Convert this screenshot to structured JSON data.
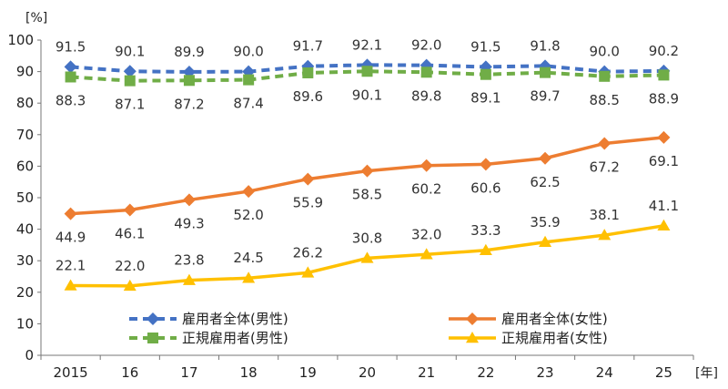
{
  "chart_data": {
    "type": "line",
    "y_unit": "[%]",
    "x_unit": "[年]",
    "categories": [
      "2015",
      "16",
      "17",
      "18",
      "19",
      "20",
      "21",
      "22",
      "23",
      "24",
      "25"
    ],
    "ylim": [
      0,
      100
    ],
    "yticks": [
      "0",
      "10",
      "20",
      "30",
      "40",
      "50",
      "60",
      "70",
      "80",
      "90",
      "100"
    ],
    "grid": false,
    "legend_position": "bottom-center",
    "series": [
      {
        "name": "雇用者全体(男性)",
        "color": "#4472C4",
        "line_style": "dashed",
        "marker": "diamond",
        "values": [
          91.5,
          90.1,
          89.9,
          90.0,
          91.7,
          92.1,
          92.0,
          91.5,
          91.8,
          90.0,
          90.2
        ],
        "labels": [
          "91.5",
          "90.1",
          "89.9",
          "90.0",
          "91.7",
          "92.1",
          "92.0",
          "91.5",
          "91.8",
          "90.0",
          "90.2"
        ],
        "label_position": "above"
      },
      {
        "name": "正規雇用者(男性)",
        "color": "#70AD47",
        "line_style": "dashed",
        "marker": "square",
        "values": [
          88.3,
          87.1,
          87.2,
          87.4,
          89.6,
          90.1,
          89.8,
          89.1,
          89.7,
          88.5,
          88.9
        ],
        "labels": [
          "88.3",
          "87.1",
          "87.2",
          "87.4",
          "89.6",
          "90.1",
          "89.8",
          "89.1",
          "89.7",
          "88.5",
          "88.9"
        ],
        "label_position": "below"
      },
      {
        "name": "雇用者全体(女性)",
        "color": "#ED7D31",
        "line_style": "solid",
        "marker": "diamond",
        "values": [
          44.9,
          46.1,
          49.3,
          52.0,
          55.9,
          58.5,
          60.2,
          60.6,
          62.5,
          67.2,
          69.1
        ],
        "labels": [
          "44.9",
          "46.1",
          "49.3",
          "52.0",
          "55.9",
          "58.5",
          "60.2",
          "60.6",
          "62.5",
          "67.2",
          "69.1"
        ],
        "label_position": "below"
      },
      {
        "name": "正規雇用者(女性)",
        "color": "#FFC000",
        "line_style": "solid",
        "marker": "triangle",
        "values": [
          22.1,
          22.0,
          23.8,
          24.5,
          26.2,
          30.8,
          32.0,
          33.3,
          35.9,
          38.1,
          41.1
        ],
        "labels": [
          "22.1",
          "22.0",
          "23.8",
          "24.5",
          "26.2",
          "30.8",
          "32.0",
          "33.3",
          "35.9",
          "38.1",
          "41.1"
        ],
        "label_position": "above"
      }
    ],
    "legend_order": [
      0,
      2,
      1,
      3
    ]
  }
}
